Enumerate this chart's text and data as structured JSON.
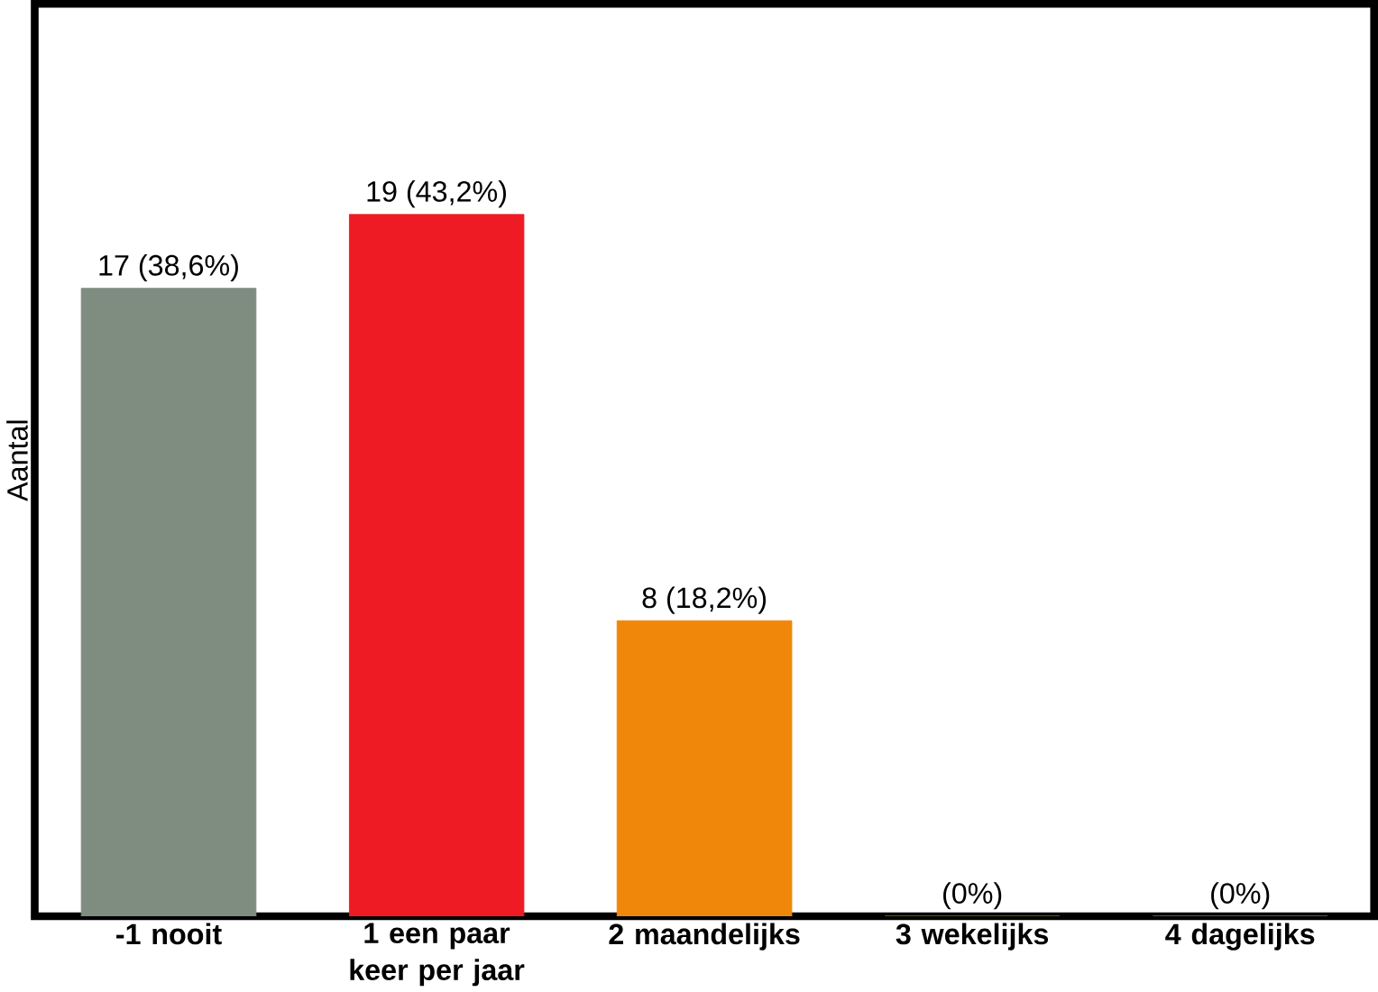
{
  "chart_data": {
    "type": "bar",
    "ylabel": "Aantal",
    "categories": [
      "-1 nooit",
      "1 een paar keer per jaar",
      "2 maandelijks",
      "3 wekelijks",
      "4 dagelijks"
    ],
    "values": [
      17,
      19,
      8,
      0,
      0
    ],
    "value_labels": [
      "17 (38,6%)",
      "19 (43,2%)",
      "8 (18,2%)",
      "(0%)",
      "(0%)"
    ],
    "colors": [
      "#7f8c80",
      "#ee1b24",
      "#f0870a",
      "#f2d600",
      "#b0f0a0"
    ],
    "tick_labels": "x"
  }
}
